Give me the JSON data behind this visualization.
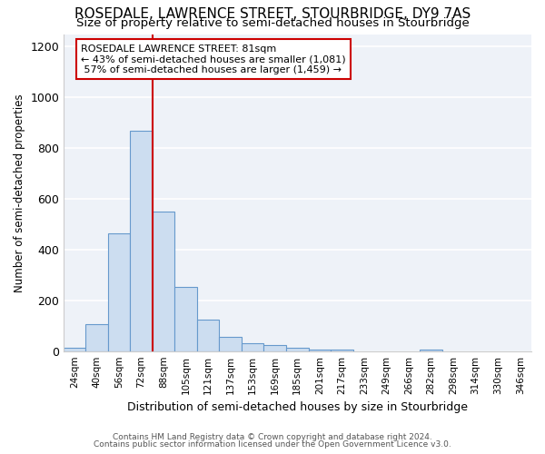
{
  "title": "ROSEDALE, LAWRENCE STREET, STOURBRIDGE, DY9 7AS",
  "subtitle": "Size of property relative to semi-detached houses in Stourbridge",
  "xlabel": "Distribution of semi-detached houses by size in Stourbridge",
  "ylabel": "Number of semi-detached properties",
  "categories": [
    "24sqm",
    "40sqm",
    "56sqm",
    "72sqm",
    "88sqm",
    "105sqm",
    "121sqm",
    "137sqm",
    "153sqm",
    "169sqm",
    "185sqm",
    "201sqm",
    "217sqm",
    "233sqm",
    "249sqm",
    "266sqm",
    "282sqm",
    "298sqm",
    "314sqm",
    "330sqm",
    "346sqm"
  ],
  "values": [
    15,
    110,
    465,
    870,
    550,
    255,
    125,
    60,
    35,
    25,
    15,
    10,
    8,
    2,
    0,
    0,
    8,
    0,
    0,
    0,
    0
  ],
  "bar_color": "#ccddf0",
  "bar_edge_color": "#6699cc",
  "red_line_label": "ROSEDALE LAWRENCE STREET: 81sqm",
  "annotation_line2": "← 43% of semi-detached houses are smaller (1,081)",
  "annotation_line3": " 57% of semi-detached houses are larger (1,459) →",
  "annotation_box_color": "#ffffff",
  "annotation_box_edge": "#cc0000",
  "ylim": [
    0,
    1250
  ],
  "yticks": [
    0,
    200,
    400,
    600,
    800,
    1000,
    1200
  ],
  "footer_line1": "Contains HM Land Registry data © Crown copyright and database right 2024.",
  "footer_line2": "Contains public sector information licensed under the Open Government Licence v3.0.",
  "bg_color": "#ffffff",
  "plot_bg_color": "#eef2f8",
  "grid_color": "#ffffff",
  "title_fontsize": 11,
  "subtitle_fontsize": 9.5,
  "bar_width": 1.0
}
